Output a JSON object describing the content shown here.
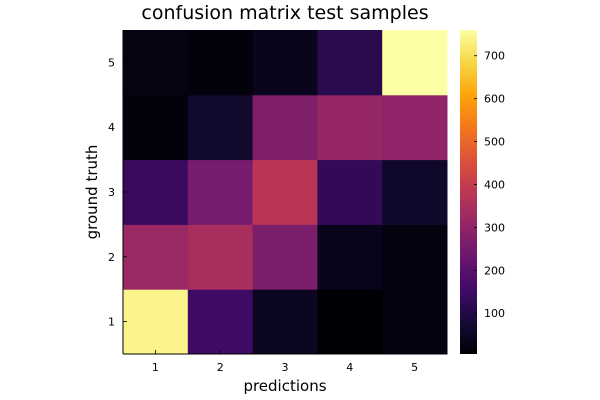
{
  "chart_data": {
    "type": "heatmap",
    "title": "confusion matrix test samples",
    "xlabel": "predictions",
    "ylabel": "ground truth",
    "x": [
      1,
      2,
      3,
      4,
      5
    ],
    "y": [
      1,
      2,
      3,
      4,
      5
    ],
    "xticks": [
      "1",
      "2",
      "3",
      "4",
      "5"
    ],
    "yticks": [
      "1",
      "2",
      "3",
      "4",
      "5"
    ],
    "z": [
      [
        740,
        150,
        45,
        5,
        20
      ],
      [
        320,
        345,
        265,
        35,
        20
      ],
      [
        140,
        255,
        375,
        130,
        60
      ],
      [
        15,
        65,
        270,
        310,
        300
      ],
      [
        25,
        15,
        40,
        115,
        760
      ]
    ],
    "colorbar": {
      "colormap": "inferno",
      "clim": [
        5,
        760
      ],
      "ticks": [
        100,
        200,
        300,
        400,
        500,
        600,
        700
      ],
      "tick_labels": [
        "100",
        "200",
        "300",
        "400",
        "500",
        "600",
        "700"
      ]
    },
    "grid": false,
    "legend": "none"
  }
}
